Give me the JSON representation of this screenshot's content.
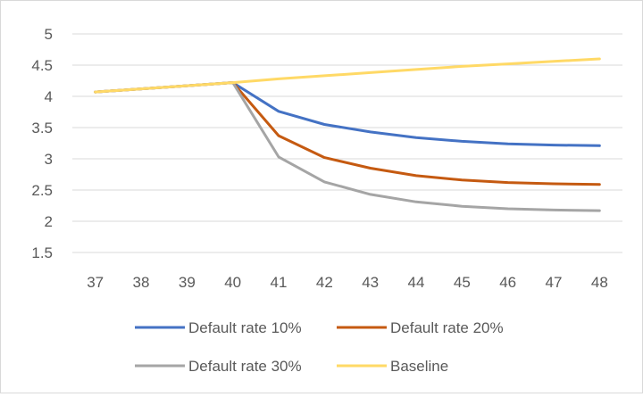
{
  "chart_data": {
    "type": "line",
    "title": "",
    "xlabel": "",
    "ylabel": "",
    "x": [
      37,
      38,
      39,
      40,
      41,
      42,
      43,
      44,
      45,
      46,
      47,
      48
    ],
    "ylim": [
      1.5,
      5
    ],
    "yticks": [
      "1.5",
      "2",
      "2.5",
      "3",
      "3.5",
      "4",
      "4.5",
      "5"
    ],
    "xticks": [
      "37",
      "38",
      "39",
      "40",
      "41",
      "42",
      "43",
      "44",
      "45",
      "46",
      "47",
      "48"
    ],
    "grid": "horizontal",
    "legend_position": "bottom",
    "series": [
      {
        "name": "Default rate 10%",
        "color": "#4472c4",
        "values": [
          4.07,
          4.12,
          4.17,
          4.22,
          3.76,
          3.55,
          3.43,
          3.34,
          3.28,
          3.24,
          3.22,
          3.21
        ]
      },
      {
        "name": "Default rate 20%",
        "color": "#c55a11",
        "values": [
          4.07,
          4.12,
          4.17,
          4.22,
          3.37,
          3.02,
          2.85,
          2.73,
          2.66,
          2.62,
          2.6,
          2.59
        ]
      },
      {
        "name": "Default rate 30%",
        "color": "#a5a5a5",
        "values": [
          4.07,
          4.12,
          4.17,
          4.22,
          3.03,
          2.63,
          2.43,
          2.31,
          2.24,
          2.2,
          2.18,
          2.17
        ]
      },
      {
        "name": "Baseline",
        "color": "#ffd966",
        "values": [
          4.07,
          4.12,
          4.17,
          4.22,
          4.28,
          4.33,
          4.38,
          4.43,
          4.48,
          4.52,
          4.56,
          4.6
        ]
      }
    ]
  }
}
